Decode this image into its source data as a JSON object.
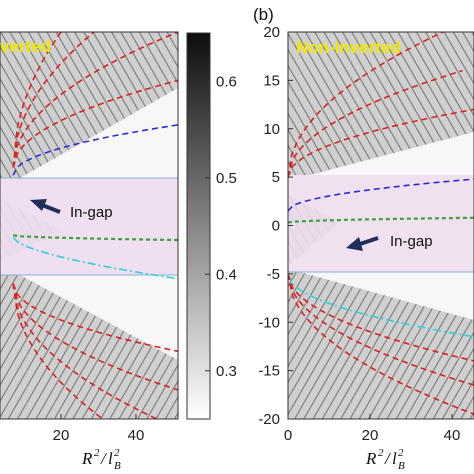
{
  "chart_data": [
    {
      "type": "heatmap",
      "panel_label": "",
      "annotation": "verted",
      "arrow_label": "In-gap",
      "xticks": [
        "20",
        "40"
      ],
      "xlabel": "R²/l²B",
      "xlim": [
        -4,
        50
      ],
      "ylim": [
        -20,
        20
      ],
      "gap_band": [
        -5,
        5
      ],
      "fans": [
        {
          "color": "red",
          "start": [
            0,
            6
          ],
          "end": [
            50,
            32
          ],
          "curvature": 0.5
        },
        {
          "color": "red",
          "start": [
            0,
            6
          ],
          "end": [
            50,
            26
          ],
          "curvature": 0.5
        },
        {
          "color": "red",
          "start": [
            0,
            6
          ],
          "end": [
            50,
            20
          ],
          "curvature": 0.5
        },
        {
          "color": "red",
          "start": [
            0,
            6
          ],
          "end": [
            50,
            15
          ],
          "curvature": 0.5
        },
        {
          "color": "blue",
          "start": [
            0,
            5.2
          ],
          "end": [
            50,
            10.4
          ],
          "curvature": 0.5
        },
        {
          "color": "green",
          "start": [
            0,
            -1
          ],
          "end": [
            50,
            -1.5
          ],
          "curvature": 0.5
        },
        {
          "color": "cyan",
          "start": [
            0,
            -1.2
          ],
          "end": [
            50,
            -5.5
          ],
          "curvature": 0.6
        },
        {
          "color": "red",
          "start": [
            0,
            -6
          ],
          "end": [
            50,
            -13
          ],
          "curvature": 0.5
        },
        {
          "color": "red",
          "start": [
            0,
            -6
          ],
          "end": [
            50,
            -17
          ],
          "curvature": 0.5
        },
        {
          "color": "red",
          "start": [
            0,
            -6
          ],
          "end": [
            50,
            -21
          ],
          "curvature": 0.5
        },
        {
          "color": "red",
          "start": [
            0,
            -6
          ],
          "end": [
            50,
            -25
          ],
          "curvature": 0.5
        }
      ]
    },
    {
      "type": "heatmap",
      "panel_label": "(b)",
      "annotation": "Non-Inverted",
      "arrow_label": "In-gap",
      "xticks": [
        "0",
        "20",
        "40"
      ],
      "yticks": [
        "20",
        "15",
        "10",
        "5",
        "0",
        "-5",
        "-10",
        "-15",
        "-20"
      ],
      "xlabel": "R²/l²B",
      "xlim": [
        0,
        48
      ],
      "ylim": [
        -20,
        20
      ],
      "gap_band": [
        -5,
        5
      ],
      "fans": [
        {
          "color": "red",
          "start": [
            0,
            5
          ],
          "end": [
            40,
            20
          ],
          "curvature": 0.5
        },
        {
          "color": "red",
          "start": [
            0,
            5
          ],
          "end": [
            45,
            16
          ],
          "curvature": 0.5
        },
        {
          "color": "red",
          "start": [
            0,
            5
          ],
          "end": [
            48,
            12
          ],
          "curvature": 0.5
        },
        {
          "color": "blue",
          "start": [
            0,
            1.5
          ],
          "end": [
            48,
            4.8
          ],
          "curvature": 0.5
        },
        {
          "color": "green",
          "start": [
            0,
            0.3
          ],
          "end": [
            48,
            0.8
          ],
          "curvature": 0.5
        },
        {
          "color": "cyan",
          "start": [
            0,
            -5
          ],
          "end": [
            48,
            -11.5
          ],
          "curvature": 0.5
        },
        {
          "color": "red",
          "start": [
            0,
            -5
          ],
          "end": [
            48,
            -14
          ],
          "curvature": 0.5
        },
        {
          "color": "red",
          "start": [
            0,
            -5
          ],
          "end": [
            48,
            -16.5
          ],
          "curvature": 0.5
        },
        {
          "color": "red",
          "start": [
            0,
            -5
          ],
          "end": [
            48,
            -19.5
          ],
          "curvature": 0.5
        }
      ]
    }
  ],
  "colorbar": {
    "ticks": [
      "0.6",
      "0.5",
      "0.4",
      "0.3"
    ],
    "values": [
      0.6,
      0.5,
      0.4,
      0.3
    ],
    "range": [
      0.25,
      0.65
    ]
  },
  "colors": {
    "gap_band": "#eedcef",
    "red": "#dd2020",
    "blue": "#2b2bd6",
    "green": "#3aa33a",
    "cyan": "#2fd0dc",
    "arrow": "#1f2f5a",
    "tag_yellow": "#f2e600"
  }
}
